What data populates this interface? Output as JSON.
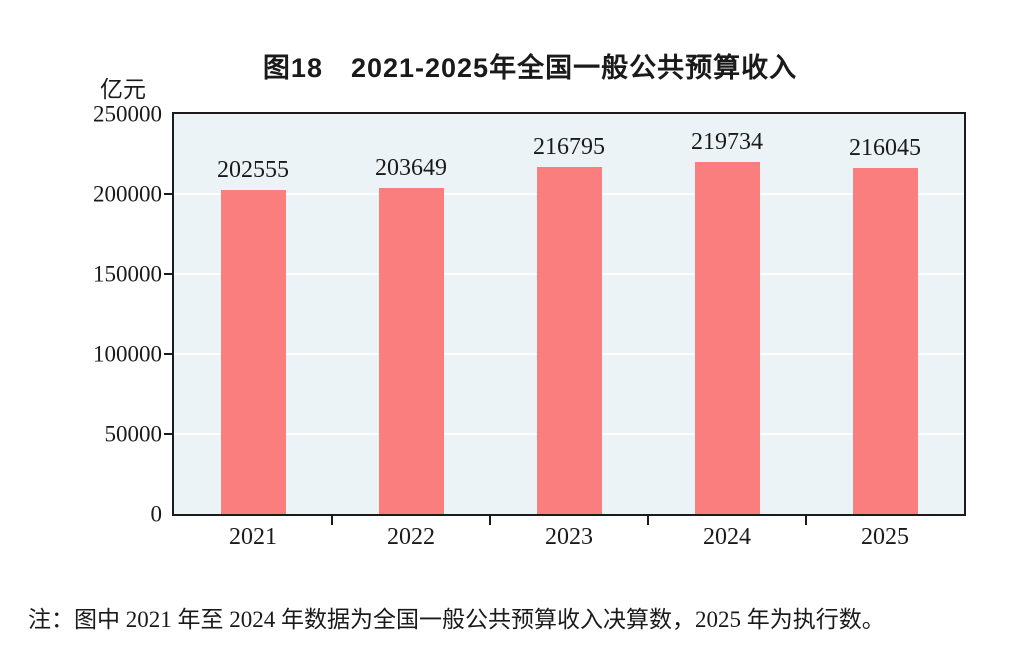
{
  "title": "图18　2021-2025年全国一般公共预算收入",
  "y_axis_unit": "亿元",
  "note": "注：图中 2021 年至 2024 年数据为全国一般公共预算收入决算数，2025 年为执行数。",
  "colors": {
    "bar": "#fb7e7e",
    "plot_background": "#ecf3f6",
    "gridline": "#fbfdfe",
    "axis_border": "#1b1b1b",
    "text": "#1a1a1a"
  },
  "chart_data": {
    "type": "bar",
    "title": "图18　2021-2025年全国一般公共预算收入",
    "categories": [
      "2021",
      "2022",
      "2023",
      "2024",
      "2025"
    ],
    "values": [
      202555,
      203649,
      216795,
      219734,
      216045
    ],
    "data_labels": [
      "202555",
      "203649",
      "216795",
      "219734",
      "216045"
    ],
    "xlabel": "",
    "ylabel": "亿元",
    "ylim": [
      0,
      250000
    ],
    "yticks": [
      0,
      50000,
      100000,
      150000,
      200000,
      250000
    ],
    "ytick_labels": [
      "0",
      "50000",
      "100000",
      "150000",
      "200000",
      "250000"
    ],
    "grid": true,
    "legend": false,
    "note": "注：图中 2021 年至 2024 年数据为全国一般公共预算收入决算数，2025 年为执行数。"
  }
}
